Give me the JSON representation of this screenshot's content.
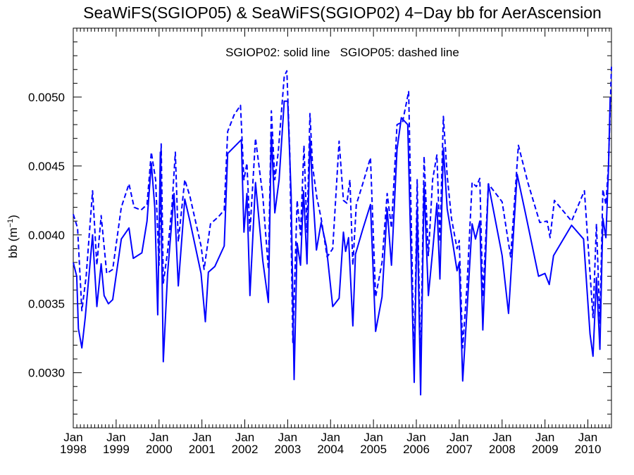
{
  "chart_data": {
    "type": "line",
    "title": "SeaWiFS(SGIOP05) & SeaWiFS(SGIOP02) 4−Day bb for AerAscension",
    "annotation": "SGIOP02: solid line   SGIOP05: dashed line",
    "ylabel": "bb (m",
    "ylabel_sup": "−1",
    "ylabel_close": ")",
    "xlim": [
      1998.0,
      2010.55
    ],
    "ylim": [
      0.0026,
      0.0055
    ],
    "grid": false,
    "x_ticks": [
      {
        "month": "Jan",
        "year": "1998",
        "x": 1998
      },
      {
        "month": "Jan",
        "year": "1999",
        "x": 1999
      },
      {
        "month": "Jan",
        "year": "2000",
        "x": 2000
      },
      {
        "month": "Jan",
        "year": "2001",
        "x": 2001
      },
      {
        "month": "Jan",
        "year": "2002",
        "x": 2002
      },
      {
        "month": "Jan",
        "year": "2003",
        "x": 2003
      },
      {
        "month": "Jan",
        "year": "2004",
        "x": 2004
      },
      {
        "month": "Jan",
        "year": "2005",
        "x": 2005
      },
      {
        "month": "Jan",
        "year": "2006",
        "x": 2006
      },
      {
        "month": "Jan",
        "year": "2007",
        "x": 2007
      },
      {
        "month": "Jan",
        "year": "2008",
        "x": 2008
      },
      {
        "month": "Jan",
        "year": "2009",
        "x": 2009
      },
      {
        "month": "Jan",
        "year": "2010",
        "x": 2010
      }
    ],
    "y_ticks": [
      {
        "label": "0.0030",
        "y": 0.003
      },
      {
        "label": "0.0035",
        "y": 0.0035
      },
      {
        "label": "0.0040",
        "y": 0.004
      },
      {
        "label": "0.0045",
        "y": 0.0045
      },
      {
        "label": "0.0050",
        "y": 0.005
      }
    ],
    "series": [
      {
        "style": "solid",
        "color": "#0000ff",
        "points": [
          [
            1998.0,
            0.0038
          ],
          [
            1998.08,
            0.0037
          ],
          [
            1998.12,
            0.00332
          ],
          [
            1998.2,
            0.00318
          ],
          [
            1998.28,
            0.0034
          ],
          [
            1998.45,
            0.004
          ],
          [
            1998.55,
            0.00348
          ],
          [
            1998.65,
            0.00379
          ],
          [
            1998.72,
            0.00356
          ],
          [
            1998.82,
            0.0035
          ],
          [
            1998.92,
            0.00353
          ],
          [
            1999.12,
            0.00397
          ],
          [
            1999.3,
            0.00405
          ],
          [
            1999.4,
            0.00383
          ],
          [
            1999.6,
            0.00387
          ],
          [
            1999.72,
            0.0041
          ],
          [
            1999.82,
            0.00452
          ],
          [
            1999.9,
            0.0042
          ],
          [
            1999.97,
            0.00342
          ],
          [
            2000.03,
            0.0046
          ],
          [
            2000.1,
            0.00308
          ],
          [
            2000.2,
            0.00372
          ],
          [
            2000.35,
            0.0043
          ],
          [
            2000.45,
            0.00363
          ],
          [
            2000.6,
            0.00426
          ],
          [
            2000.72,
            0.0041
          ],
          [
            2000.98,
            0.00372
          ],
          [
            2001.08,
            0.00337
          ],
          [
            2001.15,
            0.00373
          ],
          [
            2001.3,
            0.00377
          ],
          [
            2001.52,
            0.00392
          ],
          [
            2001.6,
            0.00459
          ],
          [
            2001.92,
            0.00469
          ],
          [
            2001.98,
            0.00402
          ],
          [
            2002.05,
            0.0043
          ],
          [
            2002.12,
            0.00356
          ],
          [
            2002.25,
            0.00438
          ],
          [
            2002.42,
            0.00381
          ],
          [
            2002.55,
            0.00351
          ],
          [
            2002.62,
            0.00474
          ],
          [
            2002.7,
            0.00416
          ],
          [
            2002.8,
            0.0044
          ],
          [
            2002.92,
            0.00497
          ],
          [
            2003.0,
            0.00497
          ],
          [
            2003.08,
            0.00429
          ],
          [
            2003.15,
            0.00295
          ],
          [
            2003.22,
            0.00394
          ],
          [
            2003.3,
            0.00378
          ],
          [
            2003.37,
            0.00432
          ],
          [
            2003.45,
            0.00379
          ],
          [
            2003.52,
            0.0047
          ],
          [
            2003.58,
            0.00433
          ],
          [
            2003.67,
            0.00389
          ],
          [
            2003.78,
            0.00409
          ],
          [
            2003.9,
            0.00392
          ],
          [
            2004.05,
            0.00348
          ],
          [
            2004.2,
            0.00354
          ],
          [
            2004.3,
            0.00402
          ],
          [
            2004.35,
            0.00388
          ],
          [
            2004.42,
            0.00398
          ],
          [
            2004.52,
            0.00334
          ],
          [
            2004.58,
            0.00386
          ],
          [
            2004.75,
            0.00404
          ],
          [
            2004.93,
            0.00422
          ],
          [
            2005.05,
            0.0033
          ],
          [
            2005.2,
            0.00355
          ],
          [
            2005.32,
            0.00419
          ],
          [
            2005.42,
            0.00378
          ],
          [
            2005.55,
            0.00462
          ],
          [
            2005.65,
            0.00485
          ],
          [
            2005.8,
            0.0048
          ],
          [
            2005.95,
            0.00293
          ],
          [
            2006.02,
            0.00419
          ],
          [
            2006.1,
            0.00284
          ],
          [
            2006.18,
            0.00436
          ],
          [
            2006.28,
            0.00356
          ],
          [
            2006.38,
            0.00388
          ],
          [
            2006.48,
            0.00423
          ],
          [
            2006.55,
            0.00368
          ],
          [
            2006.63,
            0.00463
          ],
          [
            2006.72,
            0.00419
          ],
          [
            2006.82,
            0.004
          ],
          [
            2006.95,
            0.00374
          ],
          [
            2007.0,
            0.0038
          ],
          [
            2007.08,
            0.00294
          ],
          [
            2007.18,
            0.00344
          ],
          [
            2007.3,
            0.00408
          ],
          [
            2007.38,
            0.00397
          ],
          [
            2007.48,
            0.0041
          ],
          [
            2007.55,
            0.00331
          ],
          [
            2007.68,
            0.00437
          ],
          [
            2008.0,
            0.00385
          ],
          [
            2008.15,
            0.00343
          ],
          [
            2008.35,
            0.00444
          ],
          [
            2008.55,
            0.00415
          ],
          [
            2008.85,
            0.0037
          ],
          [
            2009.0,
            0.00372
          ],
          [
            2009.1,
            0.00364
          ],
          [
            2009.2,
            0.00385
          ],
          [
            2009.62,
            0.00407
          ],
          [
            2009.9,
            0.00397
          ],
          [
            2010.05,
            0.00328
          ],
          [
            2010.12,
            0.00312
          ],
          [
            2010.2,
            0.00369
          ],
          [
            2010.28,
            0.00317
          ],
          [
            2010.35,
            0.00412
          ],
          [
            2010.42,
            0.00398
          ],
          [
            2010.48,
            0.00447
          ],
          [
            2010.52,
            0.005
          ]
        ]
      },
      {
        "style": "dashed",
        "color": "#0000ff",
        "points": [
          [
            1998.0,
            0.00415
          ],
          [
            1998.1,
            0.00405
          ],
          [
            1998.2,
            0.00345
          ],
          [
            1998.3,
            0.0037
          ],
          [
            1998.45,
            0.00432
          ],
          [
            1998.55,
            0.00378
          ],
          [
            1998.65,
            0.00414
          ],
          [
            1998.78,
            0.00372
          ],
          [
            1998.92,
            0.00375
          ],
          [
            1999.12,
            0.0042
          ],
          [
            1999.3,
            0.00437
          ],
          [
            1999.42,
            0.0042
          ],
          [
            1999.58,
            0.00418
          ],
          [
            1999.72,
            0.00422
          ],
          [
            1999.82,
            0.0046
          ],
          [
            1999.92,
            0.0044
          ],
          [
            2000.0,
            0.00378
          ],
          [
            2000.05,
            0.00466
          ],
          [
            2000.1,
            0.00365
          ],
          [
            2000.2,
            0.00388
          ],
          [
            2000.3,
            0.0042
          ],
          [
            2000.38,
            0.0046
          ],
          [
            2000.45,
            0.00395
          ],
          [
            2000.6,
            0.0044
          ],
          [
            2000.72,
            0.00428
          ],
          [
            2000.98,
            0.00392
          ],
          [
            2001.05,
            0.00375
          ],
          [
            2001.2,
            0.00408
          ],
          [
            2001.38,
            0.00413
          ],
          [
            2001.52,
            0.00418
          ],
          [
            2001.6,
            0.00475
          ],
          [
            2001.75,
            0.00487
          ],
          [
            2001.9,
            0.00494
          ],
          [
            2001.98,
            0.0044
          ],
          [
            2002.05,
            0.00452
          ],
          [
            2002.12,
            0.00402
          ],
          [
            2002.25,
            0.0047
          ],
          [
            2002.42,
            0.00428
          ],
          [
            2002.55,
            0.00375
          ],
          [
            2002.62,
            0.0049
          ],
          [
            2002.7,
            0.0044
          ],
          [
            2002.78,
            0.0046
          ],
          [
            2002.92,
            0.00515
          ],
          [
            2002.98,
            0.00519
          ],
          [
            2003.05,
            0.00459
          ],
          [
            2003.12,
            0.00322
          ],
          [
            2003.22,
            0.00425
          ],
          [
            2003.3,
            0.004
          ],
          [
            2003.38,
            0.00465
          ],
          [
            2003.45,
            0.00402
          ],
          [
            2003.52,
            0.00488
          ],
          [
            2003.58,
            0.0045
          ],
          [
            2003.68,
            0.00427
          ],
          [
            2003.78,
            0.00412
          ],
          [
            2003.92,
            0.00384
          ],
          [
            2004.05,
            0.0039
          ],
          [
            2004.2,
            0.00468
          ],
          [
            2004.3,
            0.00425
          ],
          [
            2004.38,
            0.00423
          ],
          [
            2004.45,
            0.0044
          ],
          [
            2004.52,
            0.00378
          ],
          [
            2004.6,
            0.00422
          ],
          [
            2004.75,
            0.00437
          ],
          [
            2004.93,
            0.00456
          ],
          [
            2005.05,
            0.00355
          ],
          [
            2005.2,
            0.0038
          ],
          [
            2005.32,
            0.0043
          ],
          [
            2005.42,
            0.00405
          ],
          [
            2005.55,
            0.0048
          ],
          [
            2005.68,
            0.00482
          ],
          [
            2005.82,
            0.00504
          ],
          [
            2005.95,
            0.00302
          ],
          [
            2006.02,
            0.0044
          ],
          [
            2006.1,
            0.00302
          ],
          [
            2006.18,
            0.00457
          ],
          [
            2006.28,
            0.00385
          ],
          [
            2006.38,
            0.0044
          ],
          [
            2006.48,
            0.00458
          ],
          [
            2006.55,
            0.00395
          ],
          [
            2006.63,
            0.00486
          ],
          [
            2006.72,
            0.00443
          ],
          [
            2006.82,
            0.00412
          ],
          [
            2006.95,
            0.0039
          ],
          [
            2007.0,
            0.00396
          ],
          [
            2007.08,
            0.00318
          ],
          [
            2007.18,
            0.00362
          ],
          [
            2007.3,
            0.00438
          ],
          [
            2007.4,
            0.00435
          ],
          [
            2007.48,
            0.00441
          ],
          [
            2007.55,
            0.00355
          ],
          [
            2007.68,
            0.00437
          ],
          [
            2008.0,
            0.00424
          ],
          [
            2008.2,
            0.00384
          ],
          [
            2008.38,
            0.00465
          ],
          [
            2008.6,
            0.00438
          ],
          [
            2008.88,
            0.00409
          ],
          [
            2009.05,
            0.0041
          ],
          [
            2009.12,
            0.00398
          ],
          [
            2009.22,
            0.00425
          ],
          [
            2009.62,
            0.0041
          ],
          [
            2009.92,
            0.00432
          ],
          [
            2010.05,
            0.00372
          ],
          [
            2010.12,
            0.0034
          ],
          [
            2010.2,
            0.00408
          ],
          [
            2010.28,
            0.00336
          ],
          [
            2010.35,
            0.00433
          ],
          [
            2010.42,
            0.00422
          ],
          [
            2010.48,
            0.0045
          ],
          [
            2010.55,
            0.00522
          ]
        ]
      }
    ]
  }
}
